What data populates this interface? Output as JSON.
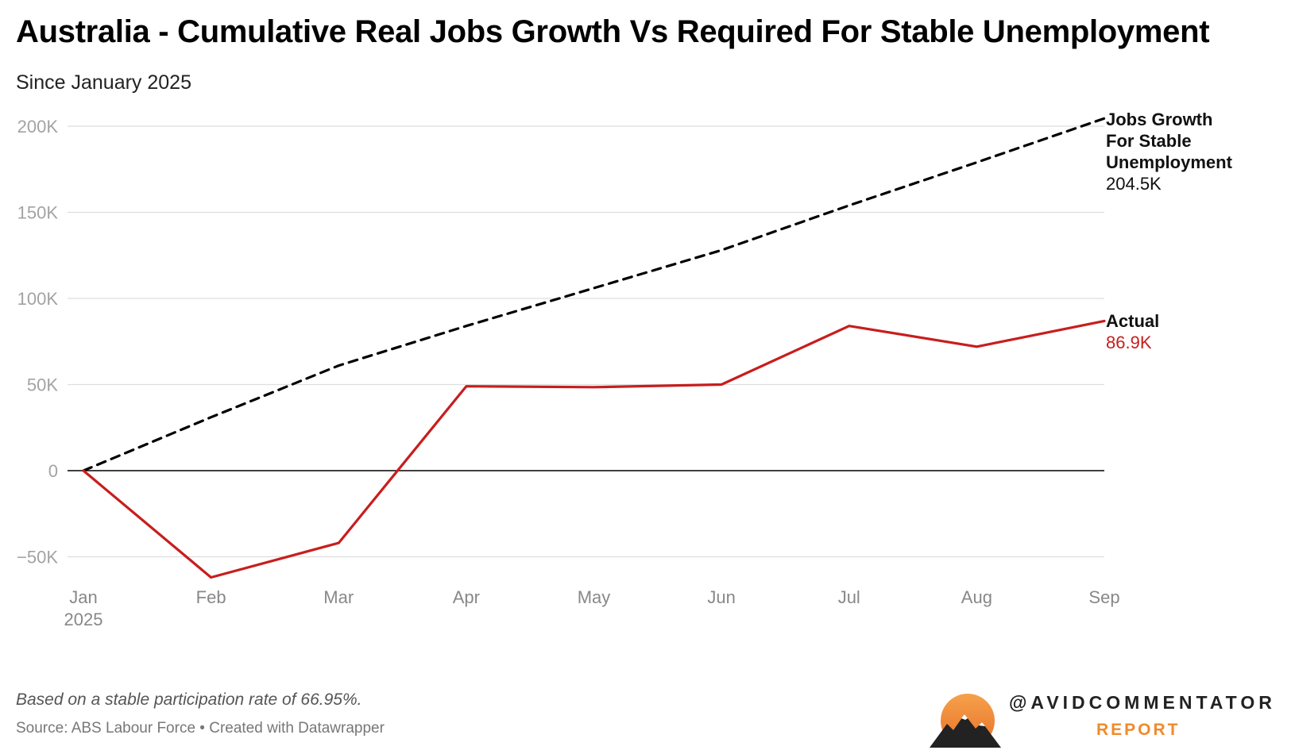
{
  "header": {
    "title": "Australia - Cumulative Real Jobs Growth Vs Required For Stable Unemployment",
    "subtitle": "Since January 2025"
  },
  "chart_data": {
    "type": "line",
    "x": [
      "Jan",
      "Feb",
      "Mar",
      "Apr",
      "May",
      "Jun",
      "Jul",
      "Aug",
      "Sep"
    ],
    "x_tick_labels": [
      "Jan",
      "Feb",
      "Mar",
      "Apr",
      "May",
      "Jun",
      "Jul",
      "Aug",
      "Sep"
    ],
    "x_first_tick_sublabel": "2025",
    "y_tick_values": [
      -50000,
      0,
      50000,
      100000,
      150000,
      200000
    ],
    "y_tick_labels": [
      "−50K",
      "0",
      "50K",
      "100K",
      "150K",
      "200K"
    ],
    "ylim": [
      -62000,
      205000
    ],
    "grid": true,
    "series": [
      {
        "name": "Jobs Growth For Stable Unemployment",
        "label_lines": [
          "Jobs Growth",
          "For Stable",
          "Unemployment"
        ],
        "end_label": "204.5K",
        "style": "dashed",
        "color": "#000000",
        "values": [
          0,
          31000,
          61000,
          84000,
          106000,
          128000,
          154000,
          179000,
          204500
        ]
      },
      {
        "name": "Actual",
        "label_lines": [
          "Actual"
        ],
        "end_label": "86.9K",
        "style": "solid",
        "color": "#c71e1d",
        "values": [
          0,
          -62000,
          -42000,
          49000,
          48500,
          50000,
          84000,
          72000,
          86900
        ]
      }
    ]
  },
  "footer": {
    "note": "Based on a stable participation rate of 66.95%.",
    "source": "Source: ABS Labour Force • Created with Datawrapper"
  },
  "brand": {
    "handle": "@AVIDCOMMENTATOR",
    "sub": "REPORT",
    "accent": "#f08a2c"
  }
}
